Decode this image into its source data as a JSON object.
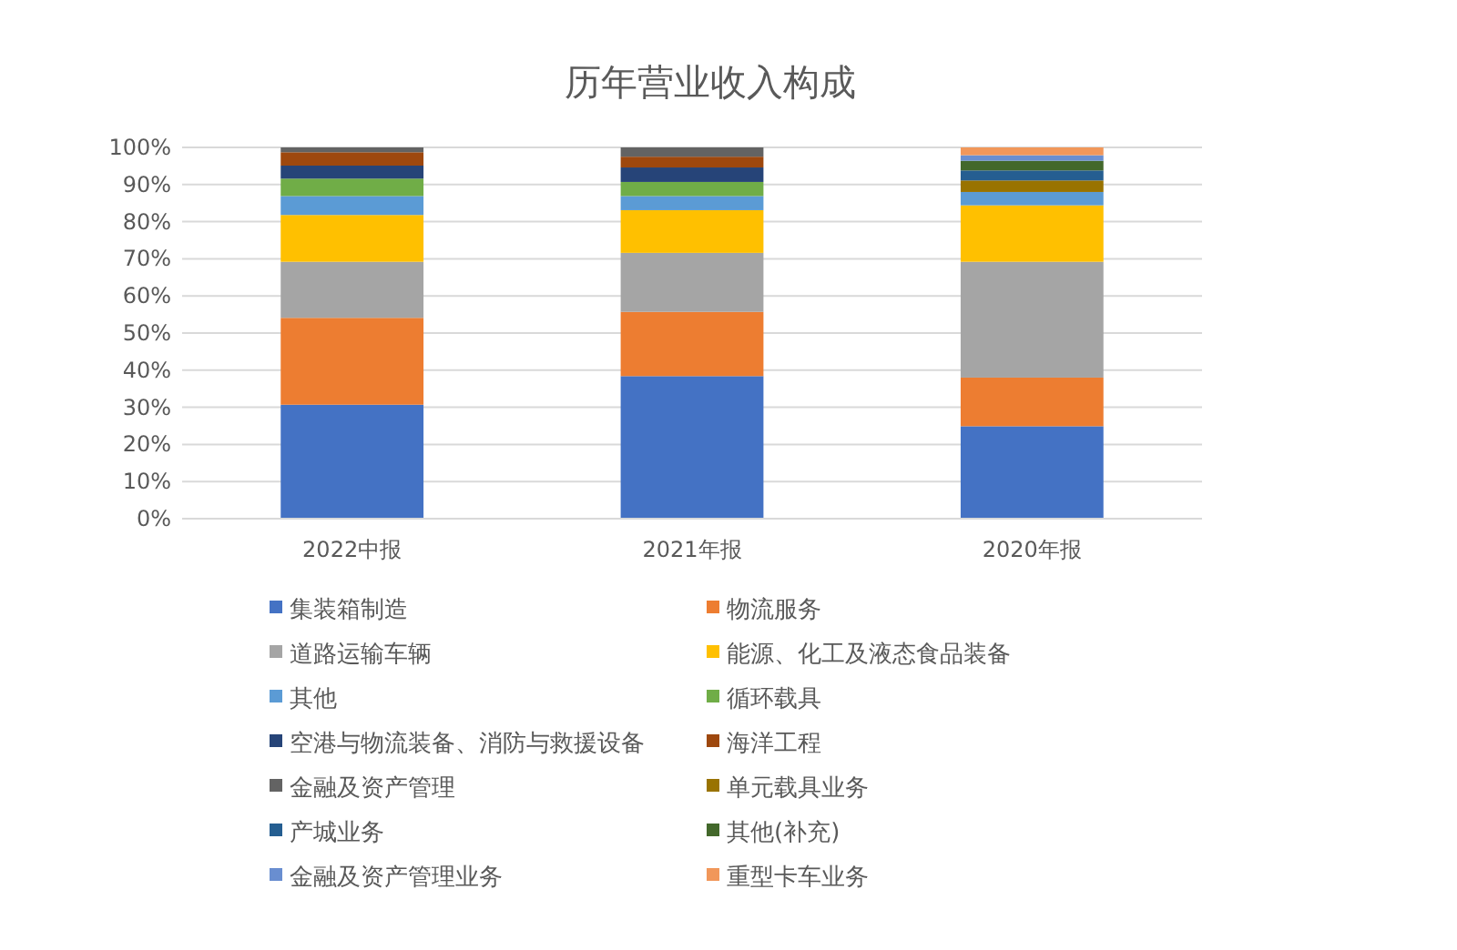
{
  "chart_data": {
    "type": "bar",
    "stacked": true,
    "title": "历年营业收入构成",
    "categories": [
      "2022中报",
      "2021年报",
      "2020年报"
    ],
    "ylim": [
      0,
      100
    ],
    "yticks": [
      {
        "value": 0,
        "label": "0%"
      },
      {
        "value": 10,
        "label": "10%"
      },
      {
        "value": 20,
        "label": "20%"
      },
      {
        "value": 30,
        "label": "30%"
      },
      {
        "value": 40,
        "label": "40%"
      },
      {
        "value": 50,
        "label": "50%"
      },
      {
        "value": 60,
        "label": "60%"
      },
      {
        "value": 70,
        "label": "70%"
      },
      {
        "value": 80,
        "label": "80%"
      },
      {
        "value": 90,
        "label": "90%"
      },
      {
        "value": 100,
        "label": "100%"
      }
    ],
    "grid": "y",
    "legend": "bottom",
    "series": [
      {
        "name": "集装箱制造",
        "color": "#4472c4",
        "values": [
          30.7,
          38.4,
          24.9
        ]
      },
      {
        "name": "物流服务",
        "color": "#ed7d31",
        "values": [
          23.4,
          17.3,
          13.1
        ]
      },
      {
        "name": "道路运输车辆",
        "color": "#a5a5a5",
        "values": [
          15.1,
          15.9,
          31.2
        ]
      },
      {
        "name": "能源、化工及液态食品装备",
        "color": "#ffc000",
        "values": [
          12.6,
          11.5,
          15.2
        ]
      },
      {
        "name": "其他",
        "color": "#5b9bd5",
        "values": [
          5.1,
          3.8,
          3.6
        ]
      },
      {
        "name": "循环载具",
        "color": "#70ad47",
        "values": [
          4.7,
          3.8,
          null
        ]
      },
      {
        "name": "空港与物流装备、消防与救援设备",
        "color": "#264478",
        "values": [
          3.5,
          3.9,
          null
        ]
      },
      {
        "name": "海洋工程",
        "color": "#9e480e",
        "values": [
          3.6,
          2.9,
          null
        ]
      },
      {
        "name": "金融及资产管理",
        "color": "#636363",
        "values": [
          1.3,
          2.5,
          null
        ]
      },
      {
        "name": "单元载具业务",
        "color": "#997300",
        "values": [
          null,
          null,
          3.1
        ]
      },
      {
        "name": "产城业务",
        "color": "#255e91",
        "values": [
          null,
          null,
          2.7
        ]
      },
      {
        "name": "其他(补充)",
        "color": "#43682b",
        "values": [
          null,
          null,
          2.6
        ]
      },
      {
        "name": "金融及资产管理业务",
        "color": "#698ed0",
        "values": [
          null,
          null,
          1.5
        ]
      },
      {
        "name": "重型卡车业务",
        "color": "#f1975a",
        "values": [
          null,
          null,
          2.1
        ]
      }
    ]
  }
}
